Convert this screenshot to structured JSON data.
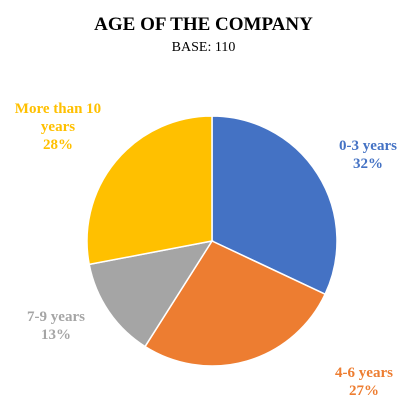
{
  "chart_data": {
    "type": "pie",
    "title": "AGE OF THE COMPANY",
    "subtitle": "BASE: 110",
    "categories": [
      "0-3 years",
      "4-6 years",
      "7-9 years",
      "More than 10 years"
    ],
    "values": [
      32,
      27,
      13,
      28
    ],
    "value_labels": [
      "32%",
      "27%",
      "13%",
      "28%"
    ],
    "colors": [
      "#4472c4",
      "#ed7d31",
      "#a5a5a5",
      "#ffc000"
    ]
  }
}
